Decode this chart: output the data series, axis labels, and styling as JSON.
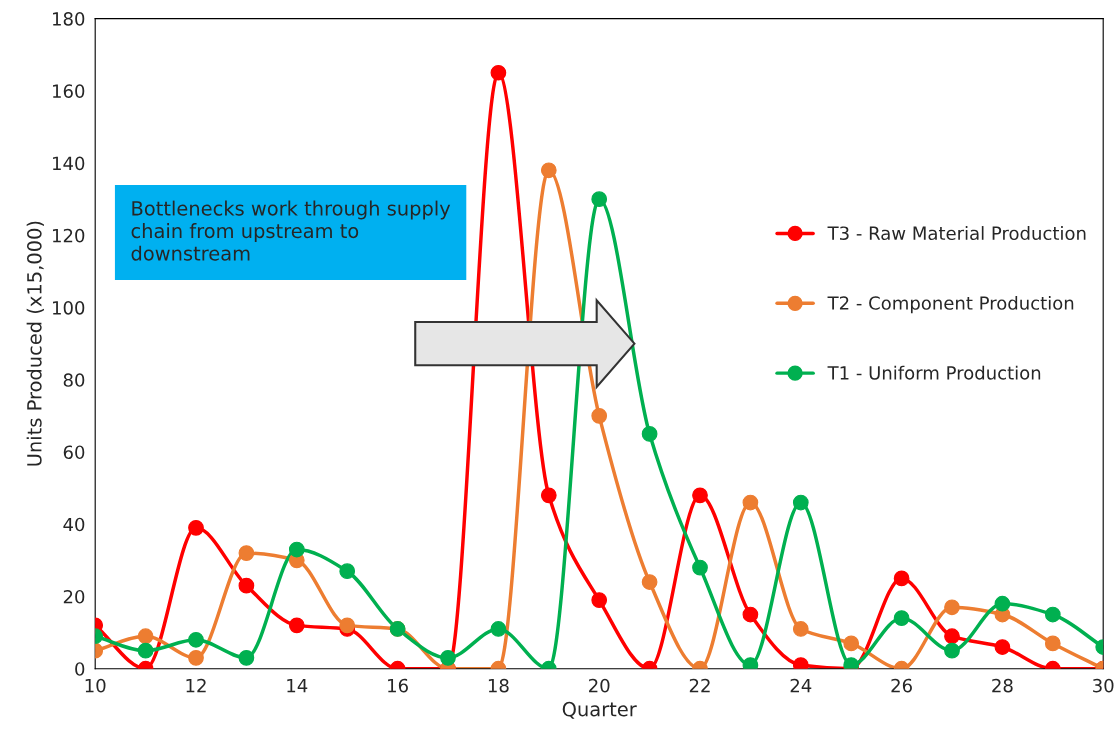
{
  "chart_data": {
    "type": "line",
    "xlabel": "Quarter",
    "ylabel": "Units Produced (x15,000)",
    "x": [
      10,
      11,
      12,
      13,
      14,
      15,
      16,
      17,
      18,
      19,
      20,
      21,
      22,
      23,
      24,
      25,
      26,
      27,
      28,
      29,
      30
    ],
    "series": [
      {
        "name": "T3 - Raw Material Production",
        "color": "#ff0000",
        "values": [
          12,
          0,
          39,
          23,
          12,
          11,
          0,
          0,
          165,
          48,
          19,
          0,
          48,
          15,
          1,
          0,
          25,
          9,
          6,
          0,
          0
        ]
      },
      {
        "name": "T2 - Component Production",
        "color": "#ed7d31",
        "values": [
          5,
          9,
          3,
          32,
          30,
          12,
          11,
          0,
          0,
          138,
          70,
          24,
          0,
          46,
          11,
          7,
          0,
          17,
          15,
          7,
          0
        ]
      },
      {
        "name": "T1 - Uniform Production",
        "color": "#00b050",
        "values": [
          9,
          5,
          8,
          3,
          33,
          27,
          11,
          3,
          11,
          0,
          130,
          65,
          28,
          1,
          46,
          1,
          14,
          5,
          18,
          15,
          6
        ]
      }
    ],
    "xlim": [
      10,
      30
    ],
    "xticks": [
      10,
      12,
      14,
      16,
      18,
      20,
      22,
      24,
      26,
      28,
      30
    ],
    "ylim": [
      0,
      180
    ],
    "yticks": [
      0,
      20,
      40,
      60,
      80,
      100,
      120,
      140,
      160,
      180
    ],
    "grid": false,
    "legend": "right",
    "marker": "circle",
    "line_style": "solid",
    "annotations": [
      "Bottlenecks work through supply chain from upstream to downstream"
    ]
  }
}
